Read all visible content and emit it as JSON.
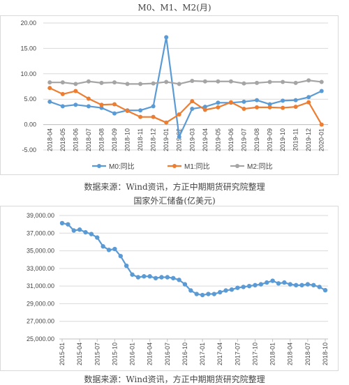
{
  "chart_data": [
    {
      "type": "line",
      "title": "M0、M1、M2(月)",
      "xlabel": "",
      "ylabel": "",
      "ylim": [
        -5,
        20
      ],
      "y_ticks": [
        "20.00",
        "15.00",
        "10.00",
        "5.00",
        "0.00",
        "-5.00"
      ],
      "categories": [
        "2018-04",
        "2018-05",
        "2018-06",
        "2018-07",
        "2018-08",
        "2018-09",
        "2018-10",
        "2018-11",
        "2018-12",
        "2019-01",
        "2019-02",
        "2019-03",
        "2019-04",
        "2019-05",
        "2019-06",
        "2019-07",
        "2019-08",
        "2019-09",
        "2019-10",
        "2019-11",
        "2019-12",
        "2020-01"
      ],
      "grid": true,
      "legend": "bottom",
      "series": [
        {
          "name": "M0:同比",
          "color": "#5B9BD5",
          "values": [
            4.5,
            3.6,
            3.9,
            3.6,
            3.3,
            2.2,
            2.8,
            2.8,
            3.6,
            17.2,
            -2.4,
            3.1,
            3.5,
            4.3,
            4.3,
            4.5,
            4.8,
            4.0,
            4.7,
            4.8,
            5.4,
            6.6
          ]
        },
        {
          "name": "M1:同比",
          "color": "#ED7D31",
          "values": [
            7.2,
            6.0,
            6.6,
            5.1,
            3.9,
            4.0,
            2.7,
            1.5,
            1.5,
            0.4,
            2.0,
            4.6,
            2.9,
            3.4,
            4.4,
            3.1,
            3.4,
            3.4,
            3.3,
            3.5,
            4.4,
            0.0
          ]
        },
        {
          "name": "M2:同比",
          "color": "#A5A5A5",
          "values": [
            8.3,
            8.3,
            8.0,
            8.5,
            8.2,
            8.3,
            8.0,
            8.0,
            8.1,
            8.4,
            8.0,
            8.6,
            8.5,
            8.5,
            8.5,
            8.1,
            8.2,
            8.4,
            8.4,
            8.2,
            8.7,
            8.4
          ]
        }
      ]
    },
    {
      "type": "line",
      "title": "国家外汇储备(亿美元)",
      "xlabel": "",
      "ylabel": "",
      "ylim": [
        25000,
        39000
      ],
      "y_ticks": [
        "39,000.00",
        "37,000.00",
        "35,000.00",
        "33,000.00",
        "31,000.00",
        "29,000.00",
        "27,000.00",
        "25,000.00"
      ],
      "x_tick_labels": [
        "2015-01",
        "2015-04",
        "2015-07",
        "2015-10",
        "2016-01",
        "2016-04",
        "2016-07",
        "2016-10",
        "2017-01",
        "2017-04",
        "2017-07",
        "2017-10",
        "2018-01",
        "2018-04",
        "2018-07",
        "2018-10"
      ],
      "grid": true,
      "legend": "none",
      "series": [
        {
          "name": "",
          "color": "#5B9BD5",
          "values": [
            38134,
            38000,
            37300,
            37400,
            37100,
            36900,
            36500,
            35500,
            35100,
            35200,
            34400,
            33300,
            32300,
            32000,
            32100,
            32100,
            31900,
            32000,
            32000,
            31900,
            31700,
            31200,
            30500,
            30100,
            29982,
            30100,
            30100,
            30300,
            30500,
            30600,
            30800,
            30900,
            31000,
            31100,
            31200,
            31400,
            31600,
            31300,
            31400,
            31200,
            31100,
            31100,
            31200,
            31100,
            30900,
            30530
          ]
        }
      ]
    }
  ],
  "source_text": [
    "数据来源：Wind资讯，方正中期期货研究院整理",
    "数据来源：Wind资讯，方正中期期货研究院整理"
  ]
}
